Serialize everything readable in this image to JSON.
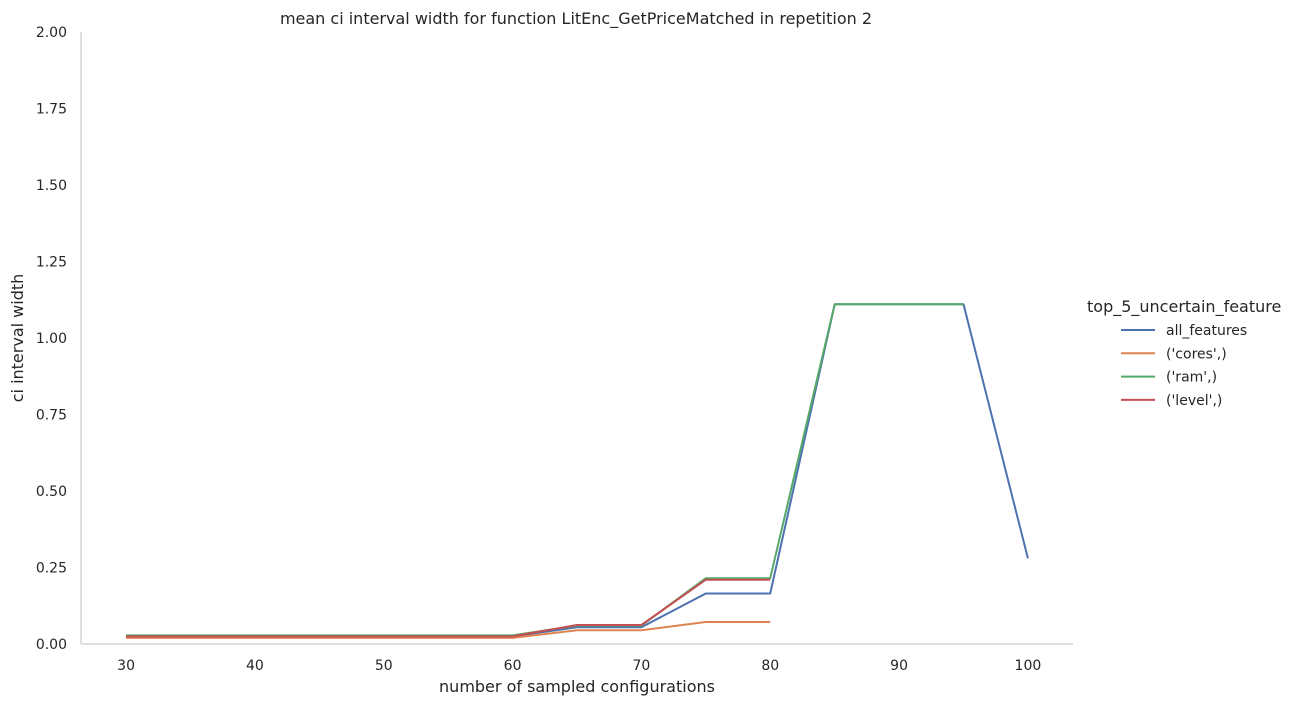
{
  "chart_data": {
    "type": "line",
    "title": "mean ci interval width for function LitEnc_GetPriceMatched in repetition 2",
    "xlabel": "number of sampled configurations",
    "ylabel": "ci interval width",
    "xlim": [
      26.5,
      103.5
    ],
    "ylim": [
      0,
      2
    ],
    "xticks": [
      30,
      40,
      50,
      60,
      70,
      80,
      90,
      100
    ],
    "yticks": [
      0,
      0.25,
      0.5,
      0.75,
      1.0,
      1.25,
      1.5,
      1.75,
      2.0
    ],
    "ytick_labels": [
      "0.00",
      "0.25",
      "0.50",
      "0.75",
      "1.00",
      "1.25",
      "1.50",
      "1.75",
      "2.00"
    ],
    "grid": false,
    "legend": {
      "title": "top_5_uncertain_feature",
      "placement": "right"
    },
    "series": [
      {
        "name": "all_features",
        "color": "#4c72b0",
        "x": [
          30,
          35,
          40,
          45,
          50,
          55,
          60,
          65,
          70,
          75,
          80,
          85,
          90,
          95,
          100
        ],
        "values": [
          0.025,
          0.025,
          0.025,
          0.025,
          0.025,
          0.025,
          0.025,
          0.055,
          0.055,
          0.165,
          0.165,
          1.11,
          1.11,
          1.11,
          0.28
        ]
      },
      {
        "name": "('cores',)",
        "color": "#dd8452",
        "x": [
          30,
          35,
          40,
          45,
          50,
          55,
          60,
          65,
          70,
          75,
          80
        ],
        "values": [
          0.02,
          0.02,
          0.02,
          0.02,
          0.02,
          0.02,
          0.02,
          0.045,
          0.045,
          0.072,
          0.072
        ]
      },
      {
        "name": "('ram',)",
        "color": "#55a868",
        "x": [
          30,
          35,
          40,
          45,
          50,
          55,
          60,
          65,
          70,
          75,
          80,
          85,
          90,
          95
        ],
        "values": [
          0.028,
          0.028,
          0.028,
          0.028,
          0.028,
          0.028,
          0.028,
          0.06,
          0.06,
          0.215,
          0.215,
          1.11,
          1.11,
          1.11
        ]
      },
      {
        "name": "('level',)",
        "color": "#c44e52",
        "x": [
          30,
          35,
          40,
          45,
          50,
          55,
          60,
          65,
          70,
          75,
          80
        ],
        "values": [
          0.025,
          0.025,
          0.025,
          0.025,
          0.025,
          0.025,
          0.025,
          0.062,
          0.062,
          0.21,
          0.21
        ]
      }
    ]
  }
}
